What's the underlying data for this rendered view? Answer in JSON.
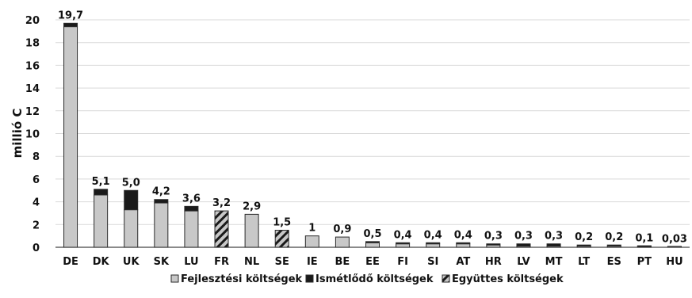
{
  "chart_data": {
    "type": "bar",
    "stacked": true,
    "title": "",
    "xlabel": "",
    "ylabel": "millió C",
    "ylim": [
      0,
      20
    ],
    "yticks": [
      0,
      2,
      4,
      6,
      8,
      10,
      12,
      14,
      16,
      18,
      20
    ],
    "grid": true,
    "legend_position": "bottom",
    "categories": [
      "DE",
      "DK",
      "UK",
      "SK",
      "LU",
      "FR",
      "NL",
      "SE",
      "IE",
      "BE",
      "EE",
      "FI",
      "SI",
      "AT",
      "HR",
      "LV",
      "MT",
      "LT",
      "ES",
      "PT",
      "HU"
    ],
    "data_labels": [
      "19,7",
      "5,1",
      "5,0",
      "4,2",
      "3,6",
      "3,2",
      "2,9",
      "1,5",
      "1",
      "0,9",
      "0,5",
      "0,4",
      "0,4",
      "0,4",
      "0,3",
      "0,3",
      "0,3",
      "0,2",
      "0,2",
      "0,1",
      "0,03"
    ],
    "series": [
      {
        "name": "Fejlesztési költségek",
        "color": "#c8c8c8",
        "pattern": "solid",
        "values": [
          19.4,
          4.6,
          3.3,
          3.9,
          3.2,
          0,
          2.9,
          0,
          1.0,
          0.9,
          0.4,
          0.3,
          0.3,
          0.3,
          0.2,
          0.1,
          0.1,
          0.1,
          0.1,
          0.05,
          0.03
        ]
      },
      {
        "name": "Ismétlődő költségek",
        "color": "#1a1a1a",
        "pattern": "solid",
        "values": [
          0.3,
          0.5,
          1.7,
          0.3,
          0.4,
          0,
          0,
          0,
          0,
          0,
          0.1,
          0.1,
          0.1,
          0.1,
          0.1,
          0.2,
          0.2,
          0.1,
          0.1,
          0.05,
          0
        ]
      },
      {
        "name": "Együttes költségek",
        "color": "#c8c8c8",
        "pattern": "hatched",
        "values": [
          0,
          0,
          0,
          0,
          0,
          3.2,
          0,
          1.5,
          0,
          0,
          0,
          0,
          0,
          0,
          0,
          0,
          0,
          0,
          0,
          0,
          0
        ]
      }
    ]
  }
}
